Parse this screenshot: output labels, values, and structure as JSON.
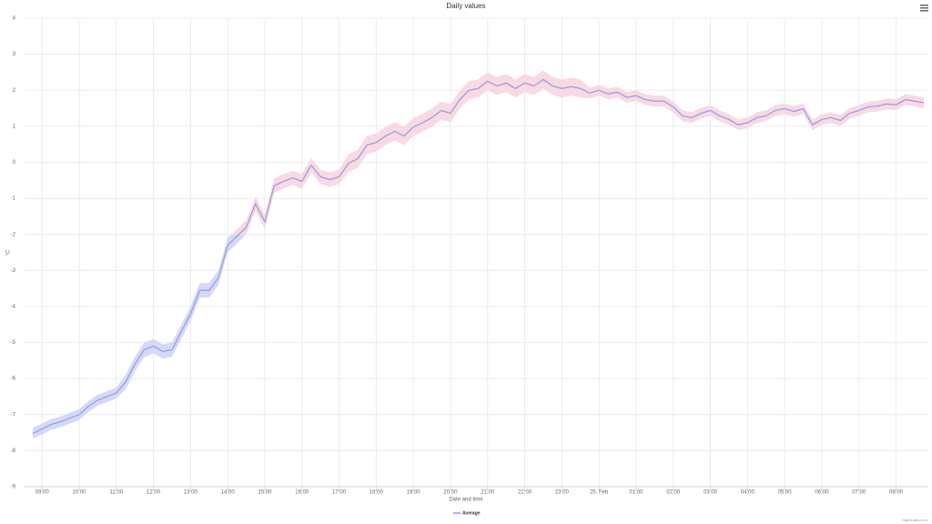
{
  "chart_data": {
    "type": "line",
    "title": "Daily values",
    "xlabel": "Date and time",
    "ylabel": "°C",
    "credits": "Highcharts.com",
    "grid": true,
    "legend": "bottom",
    "xlim": [
      -0.47,
      23.87
    ],
    "xticks": [
      {
        "value": 0,
        "label": "09:00"
      },
      {
        "value": 1,
        "label": "10:00"
      },
      {
        "value": 2,
        "label": "11:00"
      },
      {
        "value": 3,
        "label": "12:00"
      },
      {
        "value": 4,
        "label": "13:00"
      },
      {
        "value": 5,
        "label": "14:00"
      },
      {
        "value": 6,
        "label": "15:00"
      },
      {
        "value": 7,
        "label": "16:00"
      },
      {
        "value": 8,
        "label": "17:00"
      },
      {
        "value": 9,
        "label": "18:00"
      },
      {
        "value": 10,
        "label": "19:00"
      },
      {
        "value": 11,
        "label": "20:00"
      },
      {
        "value": 12,
        "label": "21:00"
      },
      {
        "value": 13,
        "label": "22:00"
      },
      {
        "value": 14,
        "label": "23:00"
      },
      {
        "value": 15,
        "label": "25. Feb"
      },
      {
        "value": 16,
        "label": "01:00"
      },
      {
        "value": 17,
        "label": "02:00"
      },
      {
        "value": 18,
        "label": "03:00"
      },
      {
        "value": 19,
        "label": "04:00"
      },
      {
        "value": 20,
        "label": "05:00"
      },
      {
        "value": 21,
        "label": "06:00"
      },
      {
        "value": 22,
        "label": "07:00"
      },
      {
        "value": 23,
        "label": "08:00"
      }
    ],
    "ylim": [
      -9,
      4
    ],
    "yticks": [
      -9,
      -8,
      -7,
      -6,
      -5,
      -4,
      -3,
      -2,
      -1,
      0,
      1,
      2,
      3,
      4
    ],
    "x": [
      -0.25,
      0,
      0.25,
      0.5,
      0.75,
      1,
      1.25,
      1.5,
      1.75,
      2,
      2.25,
      2.5,
      2.75,
      3,
      3.25,
      3.5,
      3.75,
      4,
      4.25,
      4.5,
      4.75,
      5,
      5.25,
      5.5,
      5.75,
      6,
      6.25,
      6.5,
      6.75,
      7,
      7.25,
      7.5,
      7.75,
      8,
      8.25,
      8.5,
      8.75,
      9,
      9.25,
      9.5,
      9.75,
      10,
      10.25,
      10.5,
      10.75,
      11,
      11.25,
      11.5,
      11.75,
      12,
      12.25,
      12.5,
      12.75,
      13,
      13.25,
      13.5,
      13.75,
      14,
      14.25,
      14.5,
      14.75,
      15,
      15.25,
      15.5,
      15.75,
      16,
      16.25,
      16.5,
      16.75,
      17,
      17.25,
      17.5,
      17.75,
      18,
      18.25,
      18.5,
      18.75,
      19,
      19.25,
      19.5,
      19.75,
      20,
      20.25,
      20.5,
      20.75,
      21,
      21.25,
      21.5,
      21.75,
      22,
      22.25,
      22.5,
      22.75,
      23,
      23.25,
      23.5,
      23.75
    ],
    "series": [
      {
        "name": "Average",
        "color": "#8f9bea",
        "values": [
          -7.52,
          -7.4,
          -7.27,
          -7.2,
          -7.1,
          -7.0,
          -6.77,
          -6.6,
          -6.5,
          -6.4,
          -6.1,
          -5.6,
          -5.2,
          -5.1,
          -5.25,
          -5.2,
          -4.7,
          -4.2,
          -3.55,
          -3.55,
          -3.2,
          -2.3,
          -2.05,
          -1.8,
          -1.15,
          -1.65,
          -0.65,
          -0.53,
          -0.43,
          -0.53,
          -0.08,
          -0.4,
          -0.48,
          -0.4,
          -0.03,
          0.1,
          0.48,
          0.55,
          0.73,
          0.86,
          0.73,
          0.98,
          1.1,
          1.24,
          1.44,
          1.36,
          1.74,
          2.0,
          2.05,
          2.25,
          2.12,
          2.2,
          2.05,
          2.2,
          2.12,
          2.3,
          2.12,
          2.05,
          2.1,
          2.05,
          1.92,
          2.0,
          1.9,
          1.95,
          1.8,
          1.85,
          1.74,
          1.7,
          1.7,
          1.54,
          1.29,
          1.24,
          1.36,
          1.44,
          1.29,
          1.19,
          1.04,
          1.1,
          1.24,
          1.29,
          1.44,
          1.49,
          1.41,
          1.49,
          1.04,
          1.19,
          1.24,
          1.16,
          1.36,
          1.44,
          1.54,
          1.56,
          1.62,
          1.6,
          1.74,
          1.7,
          1.65
        ]
      }
    ],
    "range": {
      "zone_threshold": -2,
      "color_below": "#d5d9f7",
      "color_above": "#f9d9e2",
      "low": [
        -7.67,
        -7.55,
        -7.42,
        -7.35,
        -7.25,
        -7.15,
        -6.92,
        -6.75,
        -6.65,
        -6.55,
        -6.3,
        -5.8,
        -5.4,
        -5.3,
        -5.45,
        -5.4,
        -4.9,
        -4.4,
        -3.75,
        -3.75,
        -3.4,
        -2.5,
        -2.25,
        -2.0,
        -1.35,
        -1.85,
        -0.85,
        -0.73,
        -0.63,
        -0.73,
        -0.28,
        -0.6,
        -0.68,
        -0.6,
        -0.28,
        -0.15,
        0.23,
        0.3,
        0.48,
        0.61,
        0.48,
        0.73,
        0.85,
        0.99,
        1.19,
        1.11,
        1.49,
        1.75,
        1.8,
        2.0,
        1.87,
        1.95,
        1.8,
        1.95,
        1.87,
        2.05,
        1.87,
        1.8,
        1.85,
        1.8,
        1.77,
        1.85,
        1.75,
        1.8,
        1.65,
        1.7,
        1.59,
        1.55,
        1.55,
        1.39,
        1.14,
        1.09,
        1.21,
        1.29,
        1.14,
        1.04,
        0.89,
        0.95,
        1.09,
        1.14,
        1.29,
        1.34,
        1.26,
        1.34,
        0.89,
        1.04,
        1.09,
        1.01,
        1.21,
        1.29,
        1.39,
        1.41,
        1.47,
        1.45,
        1.59,
        1.55,
        1.5
      ],
      "high": [
        -7.37,
        -7.25,
        -7.12,
        -7.05,
        -6.95,
        -6.85,
        -6.62,
        -6.45,
        -6.35,
        -6.25,
        -5.9,
        -5.4,
        -5.0,
        -4.9,
        -5.05,
        -5.0,
        -4.5,
        -4.0,
        -3.35,
        -3.35,
        -3.0,
        -2.1,
        -1.85,
        -1.6,
        -0.95,
        -1.45,
        -0.45,
        -0.33,
        -0.23,
        -0.33,
        0.12,
        -0.2,
        -0.28,
        -0.2,
        0.22,
        0.35,
        0.73,
        0.8,
        0.98,
        1.11,
        0.98,
        1.23,
        1.35,
        1.49,
        1.69,
        1.61,
        1.99,
        2.25,
        2.3,
        2.5,
        2.37,
        2.45,
        2.3,
        2.45,
        2.37,
        2.55,
        2.37,
        2.3,
        2.35,
        2.3,
        2.07,
        2.15,
        2.05,
        2.1,
        1.95,
        2.0,
        1.89,
        1.85,
        1.85,
        1.69,
        1.44,
        1.39,
        1.51,
        1.59,
        1.44,
        1.34,
        1.19,
        1.25,
        1.39,
        1.44,
        1.59,
        1.64,
        1.56,
        1.64,
        1.19,
        1.34,
        1.39,
        1.31,
        1.51,
        1.59,
        1.69,
        1.71,
        1.77,
        1.75,
        1.89,
        1.85,
        1.8
      ]
    }
  }
}
